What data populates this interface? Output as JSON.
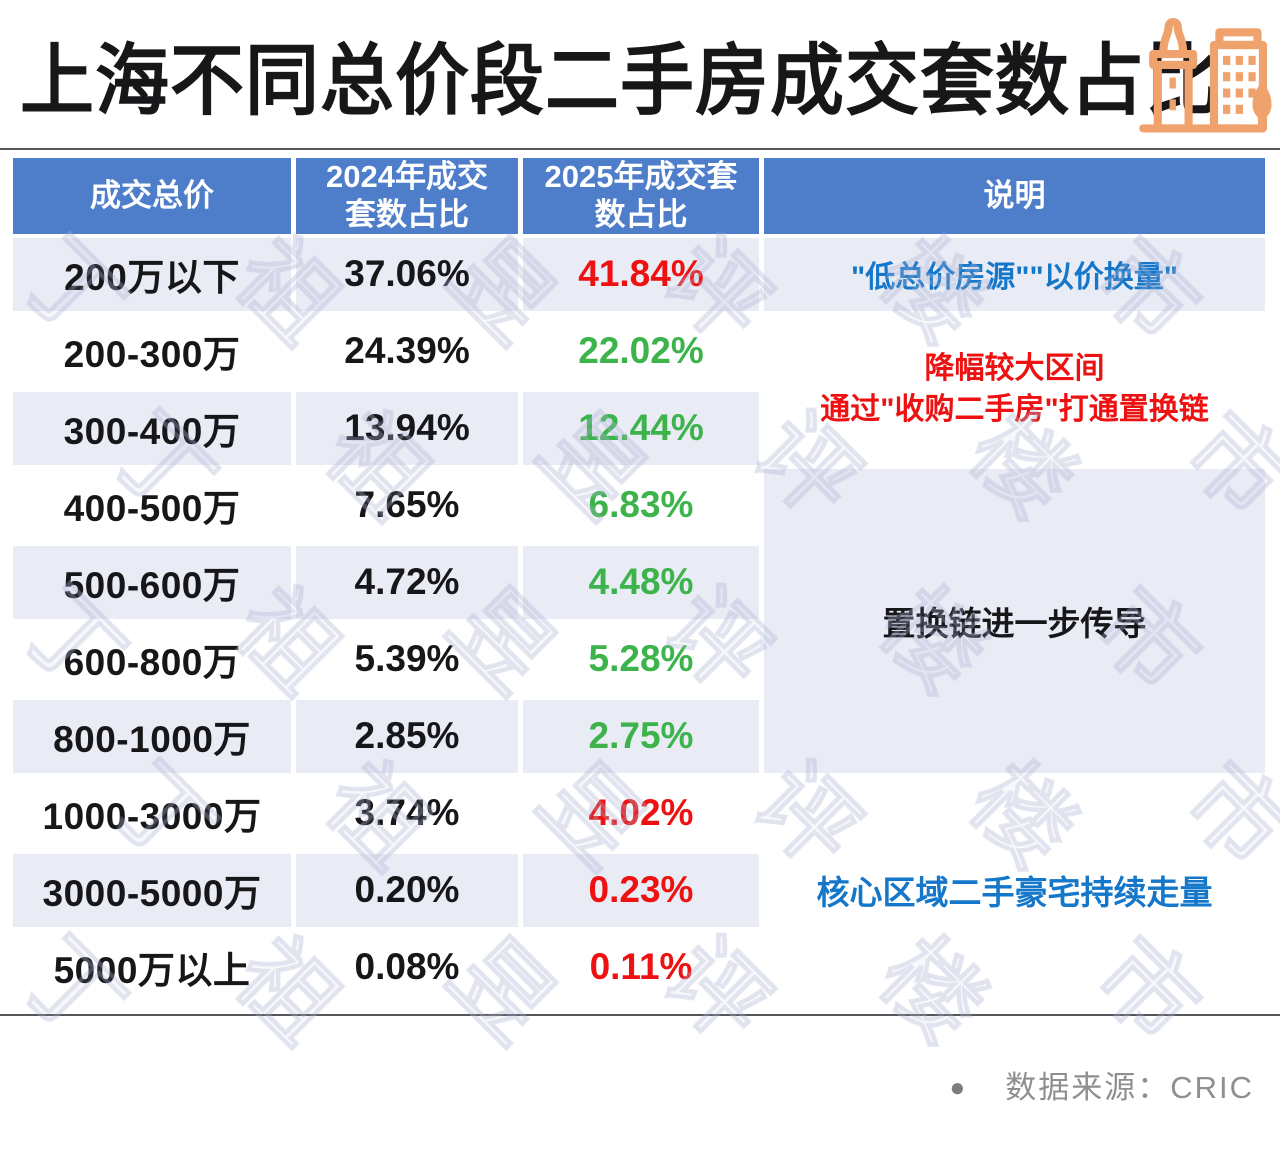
{
  "title": "上海不同总价段二手房成交套数占比",
  "icon": {
    "name": "buildings-icon",
    "color": "#f0a26c"
  },
  "table": {
    "headers": [
      {
        "lines": [
          "成交总价"
        ]
      },
      {
        "lines": [
          "2024年成交",
          "套数占比"
        ]
      },
      {
        "lines": [
          "2025年成交套",
          "数占比"
        ]
      },
      {
        "lines": [
          "说明"
        ]
      }
    ],
    "rows": [
      {
        "price": "200万以下",
        "y2024": "37.06%",
        "y2025": "41.84%",
        "trend": "up"
      },
      {
        "price": "200-300万",
        "y2024": "24.39%",
        "y2025": "22.02%",
        "trend": "down"
      },
      {
        "price": "300-400万",
        "y2024": "13.94%",
        "y2025": "12.44%",
        "trend": "down"
      },
      {
        "price": "400-500万",
        "y2024": "7.65%",
        "y2025": "6.83%",
        "trend": "down"
      },
      {
        "price": "500-600万",
        "y2024": "4.72%",
        "y2025": "4.48%",
        "trend": "down"
      },
      {
        "price": "600-800万",
        "y2024": "5.39%",
        "y2025": "5.28%",
        "trend": "down"
      },
      {
        "price": "800-1000万",
        "y2024": "2.85%",
        "y2025": "2.75%",
        "trend": "down"
      },
      {
        "price": "1000-3000万",
        "y2024": "3.74%",
        "y2025": "4.02%",
        "trend": "up"
      },
      {
        "price": "3000-5000万",
        "y2024": "0.20%",
        "y2025": "0.23%",
        "trend": "up"
      },
      {
        "price": "5000万以上",
        "y2024": "0.08%",
        "y2025": "0.11%",
        "trend": "up"
      }
    ],
    "notes": [
      {
        "text": "\"低总价房源\"\"以价换量\"",
        "color": "blue"
      },
      {
        "line1": "降幅较大区间",
        "line2": "通过\"收购二手房\"打通置换链",
        "color": "red"
      },
      {
        "text": "置换链进一步传导",
        "color": "black"
      },
      {
        "text": "核心区域二手豪宅持续走量",
        "color": "blue"
      }
    ]
  },
  "footer": {
    "bullet": "●",
    "source": "数据来源：CRIC"
  },
  "watermark": {
    "text": "丁祖昱评楼市"
  },
  "colors": {
    "header_bg": "#4e7dca",
    "row_alt_bg": "#e9ebf5",
    "increase_red": "#ee1111",
    "decrease_green": "#3cb44b",
    "note_blue": "#1577c9",
    "icon_orange": "#f0a26c",
    "source_grey": "#8f8f8f"
  },
  "chart_data": {
    "type": "table",
    "title": "上海不同总价段二手房成交套数占比",
    "categories": [
      "200万以下",
      "200-300万",
      "300-400万",
      "400-500万",
      "500-600万",
      "600-800万",
      "800-1000万",
      "1000-3000万",
      "3000-5000万",
      "5000万以上"
    ],
    "series": [
      {
        "name": "2024年成交套数占比",
        "values": [
          37.06,
          24.39,
          13.94,
          7.65,
          4.72,
          5.39,
          2.85,
          3.74,
          0.2,
          0.08
        ]
      },
      {
        "name": "2025年成交套数占比",
        "values": [
          41.84,
          22.02,
          12.44,
          6.83,
          4.48,
          5.28,
          2.75,
          4.02,
          0.23,
          0.11
        ]
      }
    ],
    "annotations": [
      {
        "rows": [
          "200万以下"
        ],
        "text": "\"低总价房源\"\"以价换量\""
      },
      {
        "rows": [
          "200-300万",
          "300-400万"
        ],
        "text": "降幅较大区间 通过\"收购二手房\"打通置换链"
      },
      {
        "rows": [
          "400-500万",
          "500-600万",
          "600-800万",
          "800-1000万"
        ],
        "text": "置换链进一步传导"
      },
      {
        "rows": [
          "1000-3000万",
          "3000-5000万",
          "5000万以上"
        ],
        "text": "核心区域二手豪宅持续走量"
      }
    ],
    "source": "CRIC",
    "value_unit": "%"
  }
}
